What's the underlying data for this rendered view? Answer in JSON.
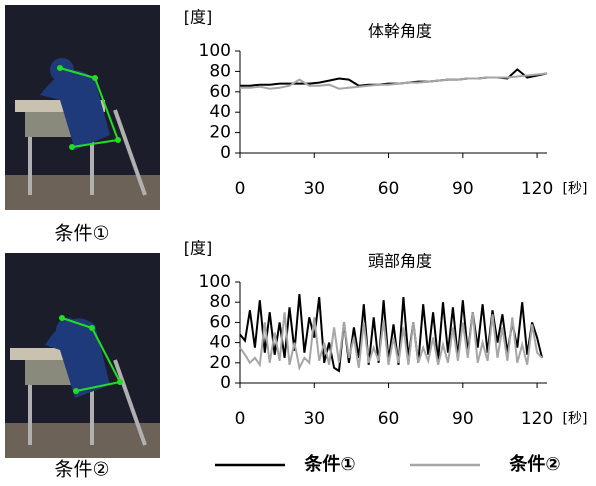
{
  "chart_data": [
    {
      "type": "line",
      "title": "体幹角度",
      "ylabel": "[度]",
      "xlabel": "[秒]",
      "x": [
        0,
        4,
        8,
        12,
        16,
        20,
        24,
        28,
        32,
        36,
        40,
        44,
        48,
        52,
        56,
        60,
        64,
        68,
        72,
        76,
        80,
        84,
        88,
        92,
        96,
        100,
        104,
        108,
        112,
        116,
        120,
        124
      ],
      "series": [
        {
          "name": "条件①",
          "color": "#000000",
          "values": [
            66,
            66,
            67,
            67,
            68,
            68,
            68,
            68,
            69,
            71,
            73,
            72,
            66,
            67,
            67,
            68,
            68,
            69,
            70,
            70,
            71,
            72,
            72,
            73,
            73,
            74,
            74,
            73,
            82,
            74,
            76,
            78
          ]
        },
        {
          "name": "条件②",
          "color": "#a6a6a6",
          "values": [
            64,
            64,
            65,
            63,
            64,
            66,
            72,
            66,
            66,
            67,
            63,
            64,
            65,
            66,
            67,
            67,
            68,
            69,
            69,
            70,
            71,
            72,
            72,
            73,
            73,
            74,
            74,
            74,
            75,
            76,
            77,
            78
          ]
        }
      ],
      "xlim": [
        0,
        124
      ],
      "ylim": [
        0,
        100
      ],
      "xticks": [
        0,
        30,
        60,
        90,
        120
      ],
      "yticks": [
        0,
        20,
        40,
        60,
        80,
        100
      ],
      "grid": false
    },
    {
      "type": "line",
      "title": "頭部角度",
      "ylabel": "[度]",
      "xlabel": "[秒]",
      "x": [
        0,
        2,
        4,
        6,
        8,
        10,
        12,
        14,
        16,
        18,
        20,
        22,
        24,
        26,
        28,
        30,
        32,
        34,
        36,
        38,
        40,
        42,
        44,
        46,
        48,
        50,
        52,
        54,
        56,
        58,
        60,
        62,
        64,
        66,
        68,
        70,
        72,
        74,
        76,
        78,
        80,
        82,
        84,
        86,
        88,
        90,
        92,
        94,
        96,
        98,
        100,
        102,
        104,
        106,
        108,
        110,
        112,
        114,
        116,
        118,
        120,
        122
      ],
      "series": [
        {
          "name": "条件①",
          "color": "#000000",
          "values": [
            48,
            42,
            72,
            35,
            82,
            30,
            70,
            28,
            60,
            25,
            75,
            32,
            88,
            30,
            65,
            45,
            85,
            20,
            40,
            15,
            12,
            60,
            20,
            55,
            25,
            78,
            18,
            65,
            20,
            82,
            22,
            58,
            18,
            85,
            25,
            60,
            20,
            78,
            28,
            70,
            22,
            80,
            30,
            75,
            25,
            82,
            30,
            70,
            35,
            78,
            30,
            72,
            40,
            68,
            30,
            60,
            35,
            80,
            28,
            60,
            45,
            25
          ]
        },
        {
          "name": "条件②",
          "color": "#a6a6a6",
          "values": [
            35,
            28,
            20,
            25,
            18,
            60,
            20,
            50,
            22,
            70,
            18,
            40,
            15,
            25,
            20,
            65,
            22,
            40,
            18,
            55,
            20,
            60,
            25,
            45,
            15,
            60,
            20,
            35,
            22,
            62,
            18,
            45,
            20,
            55,
            18,
            60,
            20,
            35,
            22,
            45,
            18,
            38,
            20,
            55,
            22,
            60,
            25,
            70,
            20,
            40,
            22,
            68,
            25,
            55,
            22,
            65,
            20,
            38,
            18,
            58,
            30,
            25
          ]
        }
      ],
      "xlim": [
        0,
        124
      ],
      "ylim": [
        0,
        100
      ],
      "xticks": [
        0,
        30,
        60,
        90,
        120
      ],
      "yticks": [
        0,
        20,
        40,
        60,
        80,
        100
      ],
      "grid": false
    }
  ]
}
